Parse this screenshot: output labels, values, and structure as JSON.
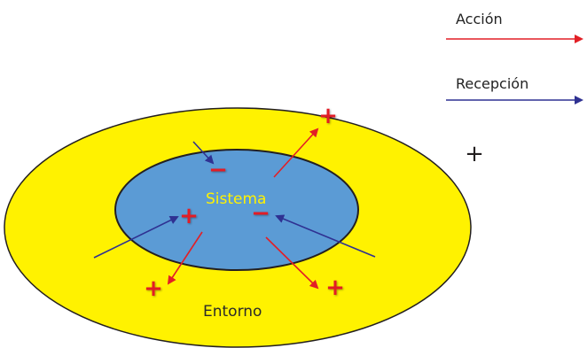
{
  "legend": {
    "action_label": "Acción",
    "reception_label": "Recepción",
    "standalone_symbol": "+"
  },
  "diagram": {
    "system_label": "Sistema",
    "environment_label": "Entorno",
    "plus_symbol": "+",
    "minus_symbol": "−"
  },
  "colors": {
    "action": "#e21f26",
    "reception": "#2f3192",
    "environment_fill": "#fff200",
    "system_fill": "#5b9bd5",
    "outline": "#231f20",
    "system_label_color": "#fff200",
    "sign_color": "#e21f26"
  }
}
